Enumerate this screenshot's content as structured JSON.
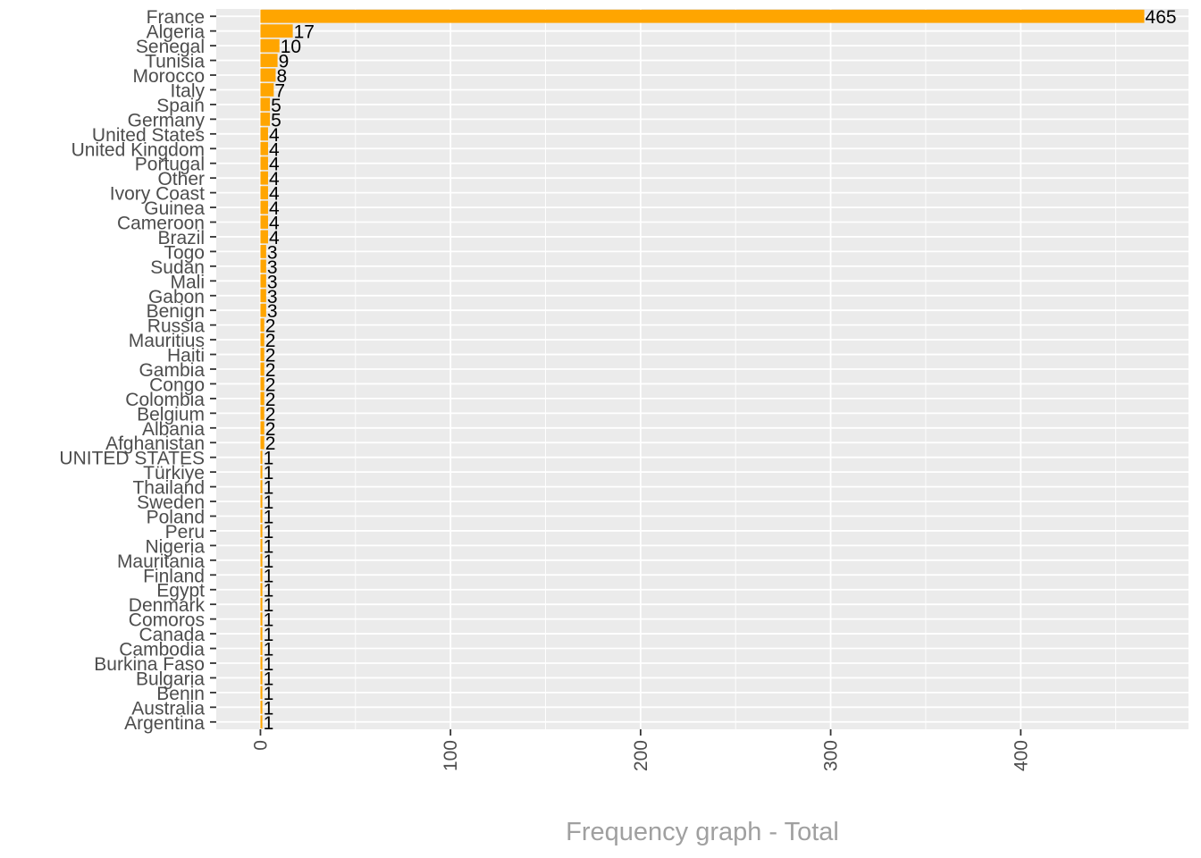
{
  "chart_data": {
    "type": "bar",
    "orientation": "horizontal",
    "title": "",
    "xlabel": "Frequency graph - Total",
    "ylabel": "",
    "categories": [
      "France",
      "Algeria",
      "Senegal",
      "Tunisia",
      "Morocco",
      "Italy",
      "Spain",
      "Germany",
      "United States",
      "United Kingdom",
      "Portugal",
      "Other",
      "Ivory Coast",
      "Guinea",
      "Cameroon",
      "Brazil",
      "Togo",
      "Sudan",
      "Mali",
      "Gabon",
      "Benign",
      "Russia",
      "Mauritius",
      "Haiti",
      "Gambia",
      "Congo",
      "Colombia",
      "Belgium",
      "Albania",
      "Afghanistan",
      "UNITED STATES",
      "Türkiye",
      "Thailand",
      "Sweden",
      "Poland",
      "Peru",
      "Nigeria",
      "Mauritania",
      "Finland",
      "Egypt",
      "Denmark",
      "Comoros",
      "Canada",
      "Cambodia",
      "Burkina Faso",
      "Bulgaria",
      "Benin",
      "Australia",
      "Argentina"
    ],
    "values": [
      465,
      17,
      10,
      9,
      8,
      7,
      5,
      5,
      4,
      4,
      4,
      4,
      4,
      4,
      4,
      4,
      3,
      3,
      3,
      3,
      3,
      2,
      2,
      2,
      2,
      2,
      2,
      2,
      2,
      2,
      1,
      1,
      1,
      1,
      1,
      1,
      1,
      1,
      1,
      1,
      1,
      1,
      1,
      1,
      1,
      1,
      1,
      1,
      1
    ],
    "xlim": [
      -23.25,
      488.25
    ],
    "x_ticks": [
      0,
      100,
      200,
      300,
      400
    ],
    "x_tick_labels": [
      "0",
      "100",
      "200",
      "300",
      "400"
    ],
    "x_tick_label_rotation": "vertical",
    "grid": true,
    "legend": "none",
    "bar_color": "#FFA500",
    "panel_background": "#EBEBEB",
    "grid_color": "#FFFFFF"
  }
}
